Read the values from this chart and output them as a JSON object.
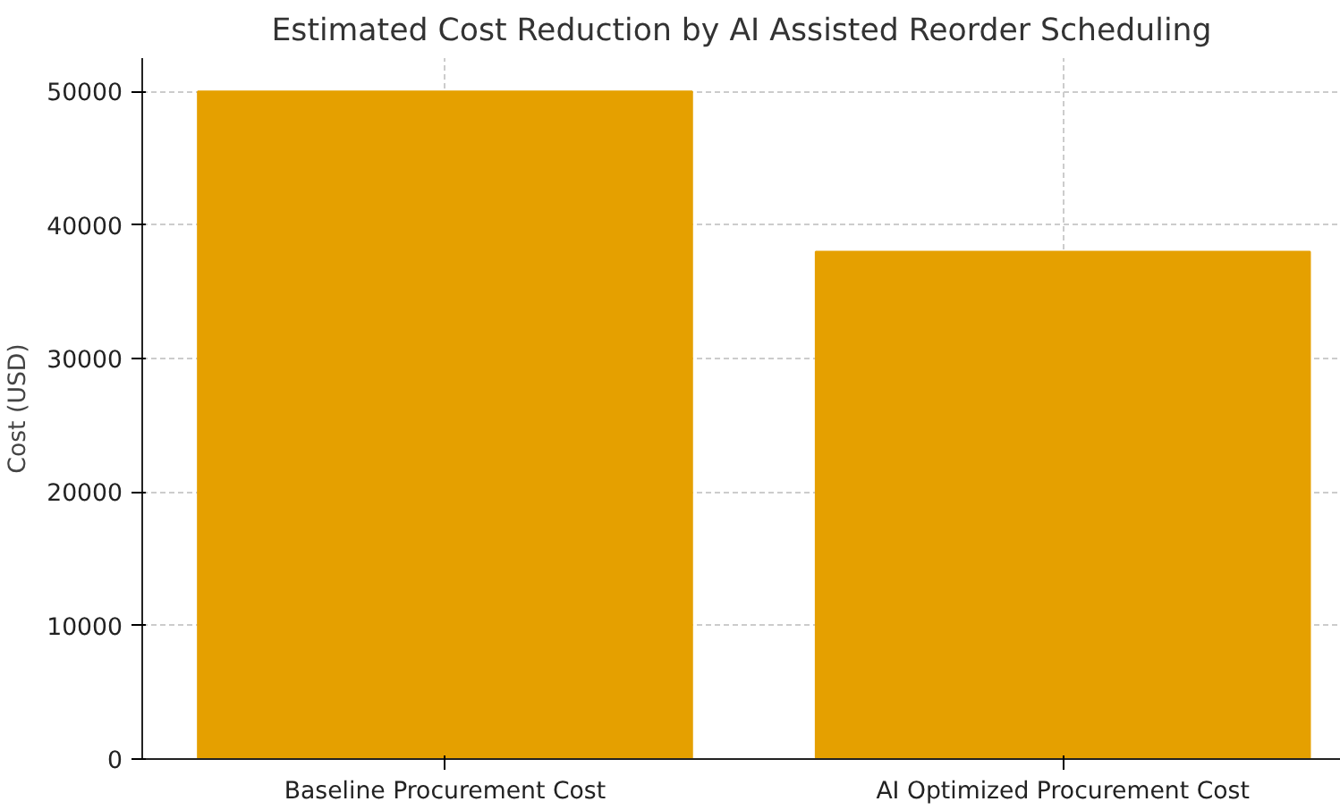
{
  "chart_data": {
    "type": "bar",
    "title": "Estimated Cost Reduction by AI Assisted Reorder Scheduling",
    "ylabel": "Cost (USD)",
    "categories": [
      "Baseline Procurement Cost",
      "AI Optimized Procurement Cost"
    ],
    "values": [
      50000,
      38000
    ],
    "color": "#e5a000",
    "ylim": [
      0,
      52500
    ],
    "yticks": [
      0,
      10000,
      20000,
      30000,
      40000,
      50000
    ],
    "grid": true
  }
}
